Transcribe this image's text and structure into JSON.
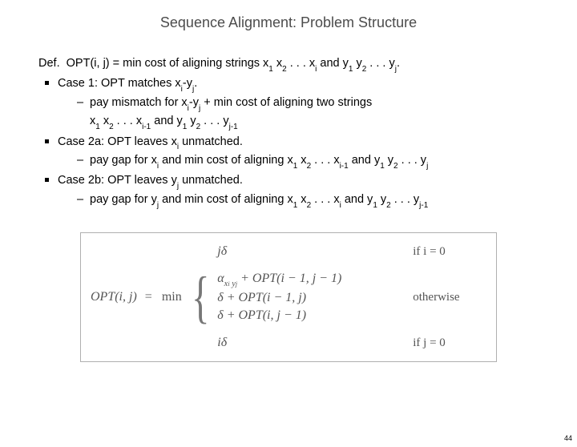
{
  "title": "Sequence Alignment: Problem Structure",
  "def": {
    "prefix": "Def.",
    "text": "OPT(i, j) = min cost of aligning strings x",
    "tail1": " x",
    "tail2": " . . . x",
    "tail3": " and y",
    "tail4": " y",
    "tail5": " . . . y",
    "end": "."
  },
  "cases": [
    {
      "label": "Case 1: OPT matches x",
      "label_mid": "-y",
      "label_end": ".",
      "detail_a": "pay mismatch for x",
      "detail_mid": "-y",
      "detail_b": "  + min cost of aligning two strings",
      "line2_a": "x",
      "line2_b": " x",
      "line2_c": " . . . x",
      "line2_d": " and y",
      "line2_e": " y",
      "line2_f": " . . . y"
    },
    {
      "label": "Case 2a: OPT leaves x",
      "label_end": " unmatched.",
      "detail_a": "pay gap for x",
      "detail_b": " and min cost of aligning x",
      "detail_c": " x",
      "detail_d": " . . . x",
      "detail_e": " and y",
      "detail_f": " y",
      "detail_g": " . . . y"
    },
    {
      "label": "Case 2b: OPT leaves y",
      "label_end": " unmatched.",
      "detail_a": "pay gap for y",
      "detail_b": " and min cost of aligning x",
      "detail_c": " x",
      "detail_d": " . . . x",
      "detail_e": " and y",
      "detail_f": " y",
      "detail_g": " . . . y"
    }
  ],
  "eq": {
    "lhs": "OPT(i, j)",
    "eqsym": " = ",
    "min": "min",
    "row1": {
      "expr_pre": "j",
      "expr_sym": "δ",
      "cond": "if i = 0"
    },
    "row2": {
      "alpha": "α",
      "sub": "x",
      "subi": "i",
      "suby": " y",
      "subj": "j",
      "plus": " + OPT(i − 1, j − 1)"
    },
    "row3": {
      "delta": "δ",
      "plus": " + OPT(i − 1, j)",
      "cond": "otherwise"
    },
    "row4": {
      "delta": "δ",
      "plus": " + OPT(i, j − 1)"
    },
    "row5": {
      "expr_pre": "i",
      "expr_sym": "δ",
      "cond": "if j = 0"
    }
  },
  "pagenum": "44"
}
